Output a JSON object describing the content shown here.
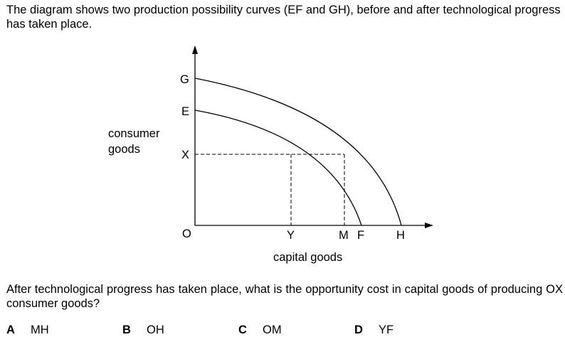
{
  "intro_text": "The diagram shows two production possibility curves (EF and GH), before and after technological progress has taken place.",
  "diagram": {
    "y_axis_label_line1": "consumer",
    "y_axis_label_line2": "goods",
    "x_axis_label": "capital goods",
    "points": {
      "G": "G",
      "E": "E",
      "X": "X",
      "O": "O",
      "Y": "Y",
      "M": "M",
      "F": "F",
      "H": "H"
    }
  },
  "question_text": "After technological progress has taken place, what is the opportunity cost in capital goods of producing OX consumer goods?",
  "options": [
    {
      "letter": "A",
      "text": "MH"
    },
    {
      "letter": "B",
      "text": "OH"
    },
    {
      "letter": "C",
      "text": "OM"
    },
    {
      "letter": "D",
      "text": "YF"
    }
  ]
}
